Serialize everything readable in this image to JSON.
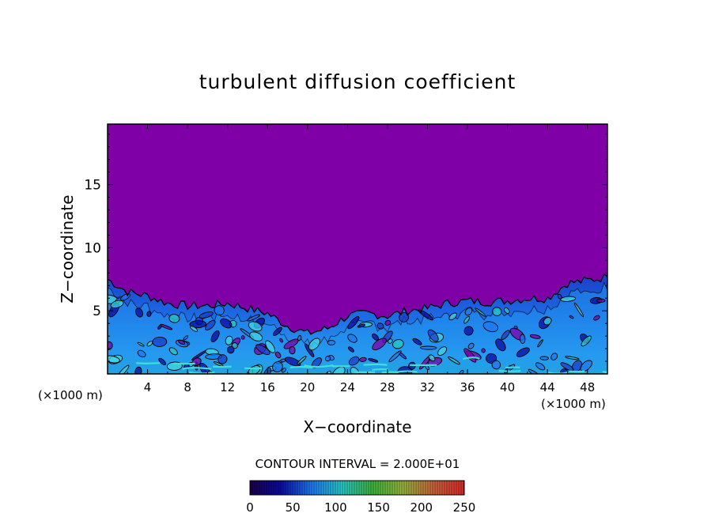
{
  "chart_data": {
    "type": "heatmap",
    "title": "turbulent diffusion coefficient",
    "xlabel": "X−coordinate",
    "ylabel": "Z−coordinate",
    "x_unit_left": "(×1000 m)",
    "x_unit_right": "(×1000 m)",
    "x_range": [
      0,
      50
    ],
    "y_range": [
      0,
      19.8
    ],
    "x_ticks": [
      4,
      8,
      12,
      16,
      20,
      24,
      28,
      32,
      36,
      40,
      44,
      48
    ],
    "y_ticks": [
      5,
      10,
      15
    ],
    "contour_interval_text": "CONTOUR INTERVAL = 2.000E+01",
    "colorbar": {
      "range": [
        0,
        250
      ],
      "ticks": [
        0,
        50,
        100,
        150,
        200,
        250
      ],
      "stops": [
        "#1a004a",
        "#0a0aa0",
        "#1e78f0",
        "#28c8c8",
        "#3cb43c",
        "#96b43c",
        "#c8643c",
        "#dc2828"
      ]
    },
    "field_color": "#8000a8",
    "boundary_layer_top": {
      "x": [
        0,
        2,
        4,
        6,
        8,
        10,
        12,
        14,
        16,
        18,
        20,
        22,
        24,
        26,
        28,
        30,
        32,
        34,
        36,
        38,
        40,
        42,
        44,
        46,
        48,
        50
      ],
      "z": [
        7.5,
        6.5,
        6.2,
        5.6,
        5.4,
        5.4,
        5.6,
        5.2,
        4.8,
        3.8,
        3.2,
        3.6,
        4.6,
        4.8,
        4.6,
        5.0,
        5.2,
        5.6,
        5.8,
        5.7,
        5.8,
        6.0,
        6.0,
        7.2,
        7.4,
        7.7
      ]
    }
  }
}
